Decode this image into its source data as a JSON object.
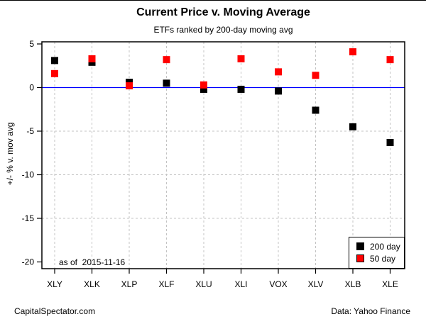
{
  "chart_data": {
    "type": "scatter",
    "title": "Current Price v. Moving Average",
    "subtitle": "ETFs ranked by 200-day moving avg",
    "ylabel": "+/- % v. mov avg",
    "annotation": "as of  2015-11-16",
    "categories": [
      "XLY",
      "XLK",
      "XLP",
      "XLF",
      "XLU",
      "XLI",
      "VOX",
      "XLV",
      "XLB",
      "XLE"
    ],
    "series": [
      {
        "name": "200 day",
        "color": "#000000",
        "marker": "square",
        "values": [
          3.1,
          2.9,
          0.6,
          0.5,
          -0.2,
          -0.2,
          -0.4,
          -2.6,
          -4.5,
          -6.3
        ]
      },
      {
        "name": "50 day",
        "color": "#ff0000",
        "marker": "square",
        "values": [
          1.6,
          3.3,
          0.2,
          3.2,
          0.3,
          3.3,
          1.8,
          1.4,
          4.1,
          3.2
        ]
      }
    ],
    "yticks": [
      5,
      0,
      -5,
      -10,
      -15,
      -20
    ],
    "ylim": [
      -20.8,
      5.2
    ],
    "grid": true,
    "grid_color": "#c3c3c3",
    "zero_line_color": "#0000ff",
    "legend_position": "bottom-right"
  },
  "footer": {
    "left": "CapitalSpectator.com",
    "right": "Data: Yahoo Finance"
  }
}
